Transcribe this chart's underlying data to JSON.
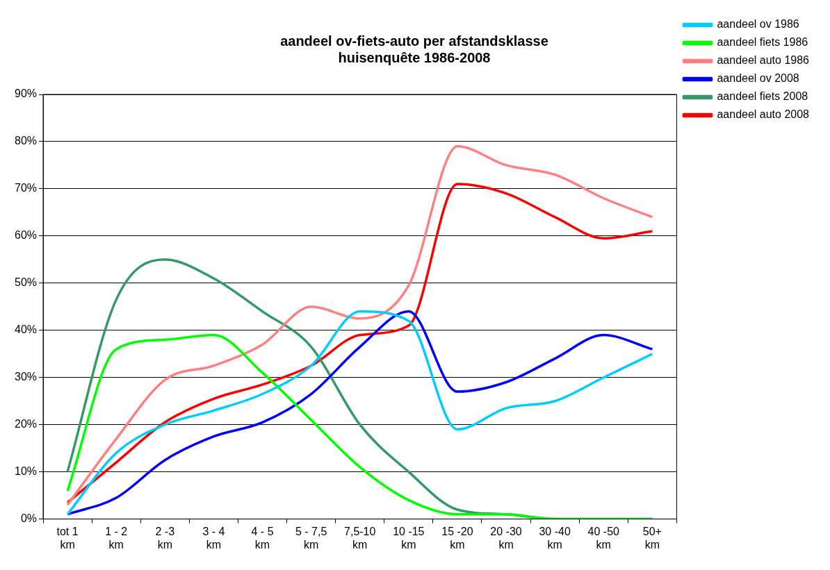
{
  "chart_data": {
    "type": "line",
    "title": "aandeel ov-fiets-auto per afstandsklasse",
    "subtitle": "huisenquête 1986-2008",
    "categories": [
      "tot 1 km",
      "1 - 2 km",
      "2 -3 km",
      "3 - 4 km",
      "4 - 5 km",
      "5 - 7,5 km",
      "7,5-10 km",
      "10 -15 km",
      "15 -20 km",
      "20 -30 km",
      "30 -40 km",
      "40 -50 km",
      "50+ km"
    ],
    "series": [
      {
        "name": "aandeel ov 1986",
        "color": "#00ccff",
        "values": [
          1,
          14,
          20,
          23,
          26.5,
          32.5,
          44,
          42,
          19,
          23.5,
          25,
          30,
          35
        ]
      },
      {
        "name": "aandeel fiets 1986",
        "color": "#00ff00",
        "values": [
          6,
          36,
          38,
          39,
          31,
          21,
          11,
          4,
          1,
          1,
          0,
          0,
          0
        ]
      },
      {
        "name": "aandeel auto 1986",
        "color": "#ff8080",
        "values": [
          3,
          17,
          29.5,
          32.5,
          37,
          45,
          42.5,
          49.5,
          79,
          75,
          73,
          68,
          64
        ]
      },
      {
        "name": "aandeel ov 2008",
        "color": "#0000ff",
        "values": [
          1,
          4.5,
          12.5,
          17.5,
          20.5,
          26.5,
          36.5,
          44,
          27,
          29,
          34,
          39,
          36
        ]
      },
      {
        "name": "aandeel fiets 2008",
        "color": "#339966",
        "values": [
          10,
          46.5,
          55,
          51,
          44,
          36.5,
          20,
          10,
          2,
          1,
          0,
          0,
          0
        ]
      },
      {
        "name": "aandeel auto 2008",
        "color": "#ff0000",
        "values": [
          3.5,
          12,
          20.5,
          25.5,
          28.5,
          32.5,
          39,
          41,
          71,
          69,
          64,
          59.5,
          61
        ]
      }
    ],
    "ylim": [
      0,
      90
    ],
    "yticks": [
      {
        "value": 0,
        "label": "0%"
      },
      {
        "value": 10,
        "label": "10%"
      },
      {
        "value": 20,
        "label": "20%"
      },
      {
        "value": 30,
        "label": "30%"
      },
      {
        "value": 40,
        "label": "40%"
      },
      {
        "value": 50,
        "label": "50%"
      },
      {
        "value": 60,
        "label": "60%"
      },
      {
        "value": 70,
        "label": "70%"
      },
      {
        "value": 80,
        "label": "80%"
      },
      {
        "value": 90,
        "label": "90%"
      }
    ],
    "grid": "y",
    "legend": "top right",
    "marker": "none",
    "line_style": "solid"
  }
}
